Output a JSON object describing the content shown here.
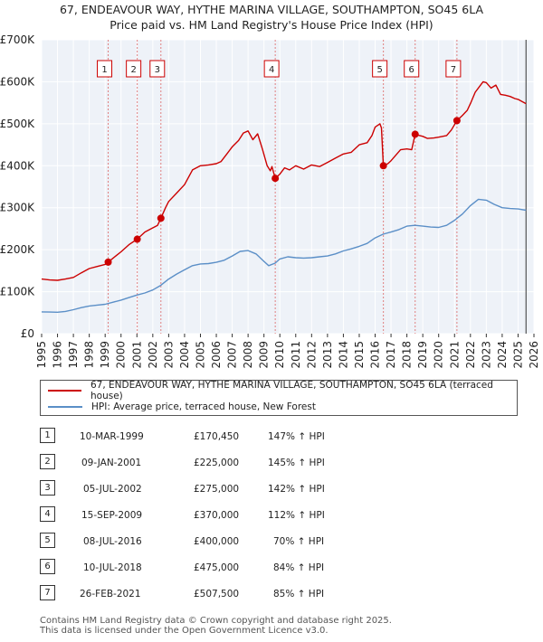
{
  "chart_data": {
    "type": "line",
    "title": "67, ENDEAVOUR WAY, HYTHE MARINA VILLAGE, SOUTHAMPTON, SO45 6LA",
    "subtitle": "Price paid vs. HM Land Registry's House Price Index (HPI)",
    "xlim": [
      1995,
      2026
    ],
    "ylim": [
      0,
      700000
    ],
    "x_ticks": [
      "1995",
      "1996",
      "1997",
      "1998",
      "1999",
      "2000",
      "2001",
      "2002",
      "2003",
      "2004",
      "2005",
      "2006",
      "2007",
      "2008",
      "2009",
      "2010",
      "2011",
      "2012",
      "2013",
      "2014",
      "2015",
      "2016",
      "2017",
      "2018",
      "2019",
      "2020",
      "2021",
      "2022",
      "2023",
      "2024",
      "2025",
      "2026"
    ],
    "y_ticks": [
      {
        "value": 0,
        "label": "£0"
      },
      {
        "value": 100000,
        "label": "£100K"
      },
      {
        "value": 200000,
        "label": "£200K"
      },
      {
        "value": 300000,
        "label": "£300K"
      },
      {
        "value": 400000,
        "label": "£400K"
      },
      {
        "value": 500000,
        "label": "£500K"
      },
      {
        "value": 600000,
        "label": "£600K"
      },
      {
        "value": 700000,
        "label": "£700K"
      }
    ],
    "series": [
      {
        "name": "67, ENDEAVOUR WAY, HYTHE MARINA VILLAGE, SOUTHAMPTON, SO45 6LA (terraced house)",
        "color": "#cc0000",
        "points": [
          [
            1995.0,
            130000
          ],
          [
            1995.5,
            128000
          ],
          [
            1996.0,
            127000
          ],
          [
            1996.5,
            130000
          ],
          [
            1997.0,
            134000
          ],
          [
            1997.5,
            145000
          ],
          [
            1998.0,
            155000
          ],
          [
            1998.5,
            160000
          ],
          [
            1999.0,
            165000
          ],
          [
            1999.19,
            170450
          ],
          [
            1999.5,
            180000
          ],
          [
            2000.0,
            195000
          ],
          [
            2000.5,
            212000
          ],
          [
            2001.02,
            225000
          ],
          [
            2001.5,
            242000
          ],
          [
            2002.0,
            252000
          ],
          [
            2002.3,
            258000
          ],
          [
            2002.51,
            275000
          ],
          [
            2002.8,
            300000
          ],
          [
            2003.0,
            315000
          ],
          [
            2003.5,
            335000
          ],
          [
            2004.0,
            355000
          ],
          [
            2004.5,
            390000
          ],
          [
            2005.0,
            400000
          ],
          [
            2005.5,
            402000
          ],
          [
            2006.0,
            405000
          ],
          [
            2006.3,
            410000
          ],
          [
            2006.7,
            430000
          ],
          [
            2007.0,
            445000
          ],
          [
            2007.4,
            460000
          ],
          [
            2007.7,
            478000
          ],
          [
            2008.0,
            483000
          ],
          [
            2008.3,
            462000
          ],
          [
            2008.6,
            476000
          ],
          [
            2008.9,
            440000
          ],
          [
            2009.2,
            400000
          ],
          [
            2009.4,
            388000
          ],
          [
            2009.5,
            398000
          ],
          [
            2009.71,
            370000
          ],
          [
            2010.0,
            380000
          ],
          [
            2010.3,
            395000
          ],
          [
            2010.6,
            390000
          ],
          [
            2011.0,
            400000
          ],
          [
            2011.5,
            392000
          ],
          [
            2012.0,
            402000
          ],
          [
            2012.5,
            398000
          ],
          [
            2013.0,
            408000
          ],
          [
            2013.5,
            418000
          ],
          [
            2014.0,
            428000
          ],
          [
            2014.5,
            432000
          ],
          [
            2015.0,
            450000
          ],
          [
            2015.5,
            455000
          ],
          [
            2015.8,
            472000
          ],
          [
            2016.0,
            492000
          ],
          [
            2016.3,
            500000
          ],
          [
            2016.4,
            490000
          ],
          [
            2016.52,
            400000
          ],
          [
            2016.8,
            405000
          ],
          [
            2017.0,
            412000
          ],
          [
            2017.3,
            425000
          ],
          [
            2017.6,
            438000
          ],
          [
            2018.0,
            440000
          ],
          [
            2018.3,
            438000
          ],
          [
            2018.52,
            475000
          ],
          [
            2018.8,
            472000
          ],
          [
            2019.0,
            470000
          ],
          [
            2019.3,
            465000
          ],
          [
            2019.7,
            466000
          ],
          [
            2020.0,
            468000
          ],
          [
            2020.5,
            472000
          ],
          [
            2020.8,
            485000
          ],
          [
            2021.15,
            507500
          ],
          [
            2021.5,
            520000
          ],
          [
            2021.8,
            532000
          ],
          [
            2022.0,
            548000
          ],
          [
            2022.3,
            575000
          ],
          [
            2022.6,
            590000
          ],
          [
            2022.8,
            600000
          ],
          [
            2023.0,
            598000
          ],
          [
            2023.3,
            585000
          ],
          [
            2023.6,
            592000
          ],
          [
            2023.9,
            570000
          ],
          [
            2024.2,
            568000
          ],
          [
            2024.5,
            565000
          ],
          [
            2024.8,
            560000
          ],
          [
            2025.0,
            558000
          ],
          [
            2025.3,
            552000
          ],
          [
            2025.5,
            548000
          ]
        ]
      },
      {
        "name": "HPI: Average price, terraced house, New Forest",
        "color": "#5b8fc7",
        "points": [
          [
            1995.0,
            52000
          ],
          [
            1995.5,
            51500
          ],
          [
            1996.0,
            51000
          ],
          [
            1996.5,
            53000
          ],
          [
            1997.0,
            57000
          ],
          [
            1997.5,
            62000
          ],
          [
            1998.0,
            66000
          ],
          [
            1998.5,
            68000
          ],
          [
            1999.0,
            70000
          ],
          [
            1999.5,
            75000
          ],
          [
            2000.0,
            80000
          ],
          [
            2000.5,
            86000
          ],
          [
            2001.0,
            92000
          ],
          [
            2001.5,
            97000
          ],
          [
            2002.0,
            104000
          ],
          [
            2002.5,
            115000
          ],
          [
            2003.0,
            130000
          ],
          [
            2003.5,
            142000
          ],
          [
            2004.0,
            152000
          ],
          [
            2004.5,
            162000
          ],
          [
            2005.0,
            166000
          ],
          [
            2005.5,
            167000
          ],
          [
            2006.0,
            170000
          ],
          [
            2006.5,
            175000
          ],
          [
            2007.0,
            185000
          ],
          [
            2007.5,
            196000
          ],
          [
            2008.0,
            198000
          ],
          [
            2008.5,
            190000
          ],
          [
            2009.0,
            172000
          ],
          [
            2009.3,
            162000
          ],
          [
            2009.7,
            168000
          ],
          [
            2010.0,
            178000
          ],
          [
            2010.5,
            183000
          ],
          [
            2011.0,
            181000
          ],
          [
            2011.5,
            180000
          ],
          [
            2012.0,
            181000
          ],
          [
            2012.5,
            183000
          ],
          [
            2013.0,
            185000
          ],
          [
            2013.5,
            190000
          ],
          [
            2014.0,
            197000
          ],
          [
            2014.5,
            202000
          ],
          [
            2015.0,
            208000
          ],
          [
            2015.5,
            215000
          ],
          [
            2016.0,
            228000
          ],
          [
            2016.5,
            237000
          ],
          [
            2017.0,
            242000
          ],
          [
            2017.5,
            248000
          ],
          [
            2018.0,
            256000
          ],
          [
            2018.5,
            258000
          ],
          [
            2019.0,
            256000
          ],
          [
            2019.5,
            254000
          ],
          [
            2020.0,
            253000
          ],
          [
            2020.5,
            258000
          ],
          [
            2021.0,
            270000
          ],
          [
            2021.5,
            285000
          ],
          [
            2022.0,
            305000
          ],
          [
            2022.5,
            320000
          ],
          [
            2023.0,
            318000
          ],
          [
            2023.5,
            308000
          ],
          [
            2024.0,
            300000
          ],
          [
            2024.5,
            298000
          ],
          [
            2025.0,
            297000
          ],
          [
            2025.5,
            294000
          ]
        ]
      }
    ],
    "sales": [
      {
        "num": "1",
        "x": 1999.19,
        "date": "10-MAR-1999",
        "price": "£170,450",
        "value": 170450,
        "hpi": "147% ↑ HPI"
      },
      {
        "num": "2",
        "x": 2001.02,
        "date": "09-JAN-2001",
        "price": "£225,000",
        "value": 225000,
        "hpi": "145% ↑ HPI"
      },
      {
        "num": "3",
        "x": 2002.51,
        "date": "05-JUL-2002",
        "price": "£275,000",
        "value": 275000,
        "hpi": "142% ↑ HPI"
      },
      {
        "num": "4",
        "x": 2009.71,
        "date": "15-SEP-2009",
        "price": "£370,000",
        "value": 370000,
        "hpi": "112% ↑ HPI"
      },
      {
        "num": "5",
        "x": 2016.52,
        "date": "08-JUL-2016",
        "price": "£400,000",
        "value": 400000,
        "hpi": "70% ↑ HPI"
      },
      {
        "num": "6",
        "x": 2018.52,
        "date": "10-JUL-2018",
        "price": "£475,000",
        "value": 475000,
        "hpi": "84% ↑ HPI"
      },
      {
        "num": "7",
        "x": 2021.15,
        "date": "26-FEB-2021",
        "price": "£507,500",
        "value": 507500,
        "hpi": "85% ↑ HPI"
      }
    ],
    "forecast_start": 2025.5,
    "colors": {
      "plot_bg": "#eef2f8",
      "grid": "#ffffff",
      "vline": "#e08080",
      "forecast_line": "#333333"
    }
  },
  "legend": {
    "items": [
      {
        "label": "67, ENDEAVOUR WAY, HYTHE MARINA VILLAGE, SOUTHAMPTON, SO45 6LA (terraced house)",
        "color": "#cc0000"
      },
      {
        "label": "HPI: Average price, terraced house, New Forest",
        "color": "#5b8fc7"
      }
    ]
  },
  "footer": {
    "line1": "Contains HM Land Registry data © Crown copyright and database right 2025.",
    "line2": "This data is licensed under the Open Government Licence v3.0."
  }
}
